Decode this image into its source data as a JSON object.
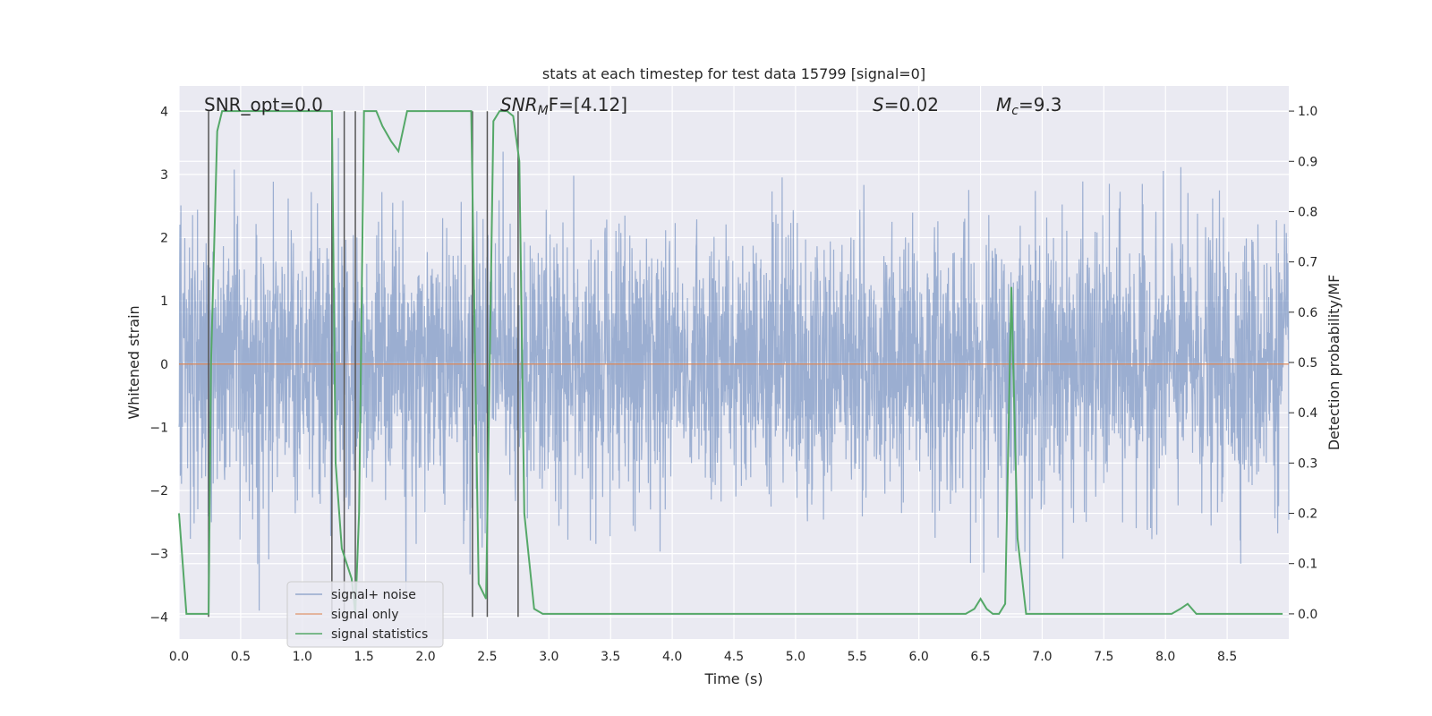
{
  "chart_data": {
    "type": "line",
    "title": "stats at each timestep for test data 15799 [signal=0]",
    "xlabel": "Time (s)",
    "ylabel": "Whitened strain",
    "ylabel_right": "Detection probability/MF",
    "xlim": [
      0.0,
      9.0
    ],
    "ylim": [
      -4.35,
      4.4
    ],
    "ylim_right": [
      -0.05,
      1.05
    ],
    "x_ticks": [
      "0.0",
      "0.5",
      "1.0",
      "1.5",
      "2.0",
      "2.5",
      "3.0",
      "3.5",
      "4.0",
      "4.5",
      "5.0",
      "5.5",
      "6.0",
      "6.5",
      "7.0",
      "7.5",
      "8.0",
      "8.5"
    ],
    "x_tick_values": [
      0,
      0.5,
      1,
      1.5,
      2,
      2.5,
      3,
      3.5,
      4,
      4.5,
      5,
      5.5,
      6,
      6.5,
      7,
      7.5,
      8,
      8.5
    ],
    "y_ticks": [
      "−4",
      "−3",
      "−2",
      "−1",
      "0",
      "1",
      "2",
      "3",
      "4"
    ],
    "y_tick_values": [
      -4,
      -3,
      -2,
      -1,
      0,
      1,
      2,
      3,
      4
    ],
    "y_right_ticks": [
      "0.0",
      "0.1",
      "0.2",
      "0.3",
      "0.4",
      "0.5",
      "0.6",
      "0.7",
      "0.8",
      "0.9",
      "1.0"
    ],
    "y_right_tick_values": [
      0,
      0.1,
      0.2,
      0.3,
      0.4,
      0.5,
      0.6,
      0.7,
      0.8,
      0.9,
      1.0
    ],
    "annotations": {
      "snr_opt": "SNR_opt=0.0",
      "snr_mf_base": "SNR",
      "snr_mf_sub": "M",
      "snr_mf_rest": "F=[4.12]",
      "s_label": "S",
      "s_value": "=0.02",
      "mc_label": "M",
      "mc_sub": "c",
      "mc_value": "=9.3"
    },
    "legend": {
      "placement": "lower-left",
      "entries": [
        "signal+ noise",
        "signal only",
        "signal statistics"
      ]
    },
    "series": [
      {
        "name": "signal+ noise",
        "color": "#4c72b0",
        "kind": "noise",
        "envelope_max": 3.9,
        "axis": "left"
      },
      {
        "name": "signal only",
        "color": "#dd8452",
        "kind": "constant",
        "value": 0.0,
        "axis": "left"
      },
      {
        "name": "signal statistics",
        "color": "#55a868",
        "axis": "right",
        "x": [
          0.0,
          0.06,
          0.09,
          0.2,
          0.24,
          0.26,
          0.31,
          0.35,
          0.4,
          0.5,
          1.0,
          1.24,
          1.27,
          1.32,
          1.4,
          1.43,
          1.46,
          1.5,
          1.6,
          1.65,
          1.72,
          1.78,
          1.85,
          2.0,
          2.3,
          2.37,
          2.43,
          2.49,
          2.55,
          2.6,
          2.66,
          2.71,
          2.76,
          2.8,
          2.88,
          2.95,
          3.0,
          6.0,
          6.38,
          6.45,
          6.5,
          6.55,
          6.6,
          6.65,
          6.7,
          6.75,
          6.8,
          6.87,
          6.95,
          7.0,
          8.05,
          8.12,
          8.18,
          8.25,
          8.3,
          8.5,
          8.95
        ],
        "y": [
          0.2,
          0.0,
          0.0,
          0.0,
          0.0,
          0.5,
          0.96,
          1.0,
          1.0,
          1.0,
          1.0,
          1.0,
          0.3,
          0.13,
          0.07,
          0.0,
          0.2,
          1.0,
          1.0,
          0.97,
          0.94,
          0.92,
          1.0,
          1.0,
          1.0,
          1.0,
          0.06,
          0.03,
          0.98,
          1.0,
          1.0,
          0.99,
          0.9,
          0.2,
          0.01,
          0.0,
          0.0,
          0.0,
          0.0,
          0.01,
          0.03,
          0.01,
          0.0,
          0.0,
          0.02,
          0.65,
          0.15,
          0.0,
          0.0,
          0.0,
          0.0,
          0.01,
          0.02,
          0.0,
          0.0,
          0.0,
          0.0
        ]
      }
    ],
    "vertical_lines": [
      0.24,
      1.24,
      1.34,
      1.43,
      2.38,
      2.5,
      2.75
    ]
  },
  "colors": {
    "background": "#eaeaf2",
    "grid": "#ffffff",
    "text": "#262626",
    "vline": "#555555"
  }
}
